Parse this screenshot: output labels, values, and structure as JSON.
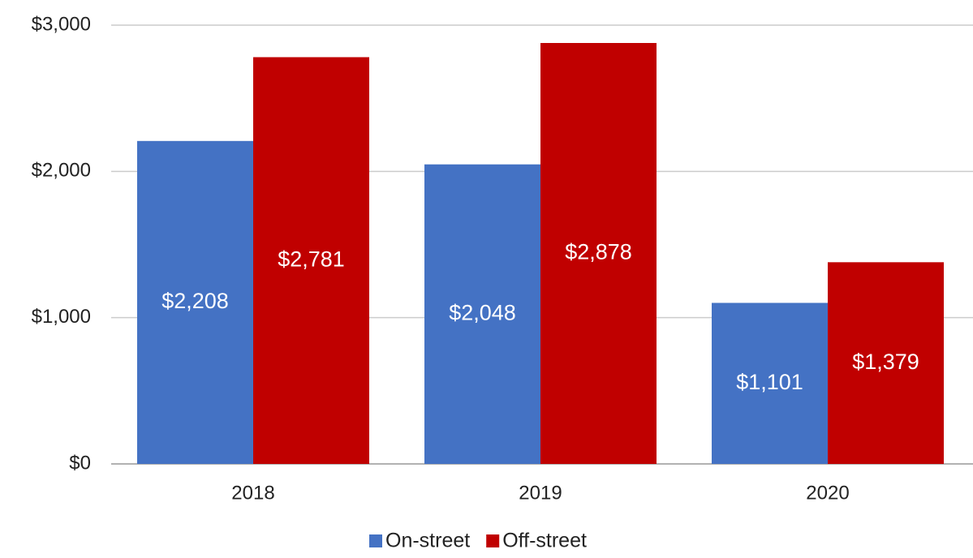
{
  "chart_data": {
    "type": "bar",
    "categories": [
      "2018",
      "2019",
      "2020"
    ],
    "series": [
      {
        "name": "On-street",
        "color": "#4472c4",
        "values": [
          2208,
          2048,
          1101
        ],
        "value_labels": [
          "$2,208",
          "$2,048",
          "$1,101"
        ]
      },
      {
        "name": "Off-street",
        "color": "#c00000",
        "values": [
          2781,
          2878,
          1379
        ],
        "value_labels": [
          "$2,781",
          "$2,878",
          "$1,379"
        ]
      }
    ],
    "ylim": [
      0,
      3000
    ],
    "yticks": [
      {
        "value": 0,
        "label": "$0"
      },
      {
        "value": 1000,
        "label": "$1,000"
      },
      {
        "value": 2000,
        "label": "$2,000"
      },
      {
        "value": 3000,
        "label": "$3,000"
      }
    ],
    "grid": true,
    "legend": "bottom"
  }
}
